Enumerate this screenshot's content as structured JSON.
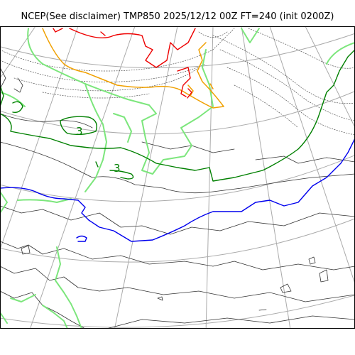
{
  "title": "NCEP(See disclaimer) TMP850 2025/12/12 00Z FT=240 (init 0200Z)",
  "contour_labels": [
    {
      "text": "3",
      "color": "#008000"
    },
    {
      "text": "3",
      "color": "#008000"
    }
  ],
  "colors": {
    "frame": "#000000",
    "graticule": "#aaaaaa",
    "coastline": "#333333",
    "snow_line": "#7ce67c",
    "zero_isotherm": "#0000ee",
    "three_isotherm": "#008000",
    "minus_isotherm": "#ee0000",
    "orange_isotherm": "#f0a000",
    "dotted_isotherm": "#555555"
  }
}
